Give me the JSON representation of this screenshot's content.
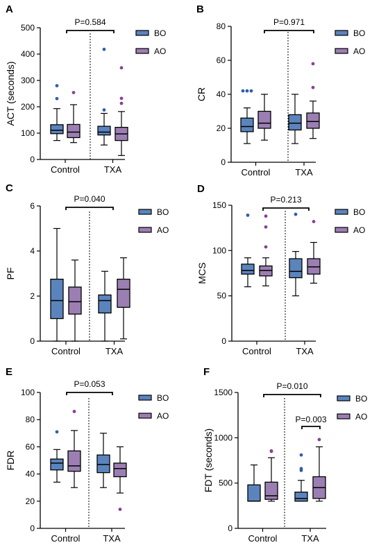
{
  "colors": {
    "bo": "#5b84bd",
    "ao": "#9b7fb2",
    "bo_outlier": "#2f5fa8",
    "ao_outlier": "#8a3f97"
  },
  "legend": {
    "bo_label": "BO",
    "ao_label": "AO"
  },
  "groups": [
    "Control",
    "TXA"
  ],
  "chart_data": [
    {
      "type": "boxplot",
      "panel": "A",
      "ylabel": "ACT (seconds)",
      "ylim": [
        0,
        500
      ],
      "yticks": [
        0,
        100,
        200,
        300,
        400,
        500
      ],
      "categories": [
        "Control",
        "TXA"
      ],
      "legend_position": "top-right",
      "series": [
        {
          "name": "BO",
          "boxes": [
            {
              "min": 72,
              "q1": 98,
              "median": 111,
              "q3": 132,
              "max": 193,
              "outliers": [
                231,
                280
              ]
            },
            {
              "min": 55,
              "q1": 93,
              "median": 104,
              "q3": 126,
              "max": 175,
              "outliers": [
                188,
                418
              ]
            }
          ]
        },
        {
          "name": "AO",
          "boxes": [
            {
              "min": 64,
              "q1": 83,
              "median": 104,
              "q3": 133,
              "max": 208,
              "outliers": [
                254
              ]
            },
            {
              "min": 15,
              "q1": 72,
              "median": 97,
              "q3": 122,
              "max": 182,
              "outliers": [
                213,
                232,
                348
              ]
            }
          ]
        }
      ],
      "comparisons": [
        {
          "label": "P=0.584",
          "between": "groups"
        }
      ]
    },
    {
      "type": "boxplot",
      "panel": "B",
      "ylabel": "CR",
      "ylim": [
        0,
        80
      ],
      "yticks": [
        0,
        20,
        40,
        60,
        80
      ],
      "categories": [
        "Control",
        "TXA"
      ],
      "legend_position": "top-right",
      "series": [
        {
          "name": "BO",
          "boxes": [
            {
              "min": 11,
              "q1": 18,
              "median": 21,
              "q3": 26,
              "max": 32,
              "outliers": [
                42,
                42,
                42
              ]
            },
            {
              "min": 11,
              "q1": 19,
              "median": 23,
              "q3": 28,
              "max": 40,
              "outliers": []
            }
          ]
        },
        {
          "name": "AO",
          "boxes": [
            {
              "min": 13,
              "q1": 20,
              "median": 23,
              "q3": 30,
              "max": 40,
              "outliers": []
            },
            {
              "min": 14,
              "q1": 20,
              "median": 24,
              "q3": 29,
              "max": 36,
              "outliers": [
                44,
                58
              ]
            }
          ]
        }
      ],
      "comparisons": [
        {
          "label": "P=0.971",
          "between": "groups"
        }
      ]
    },
    {
      "type": "boxplot",
      "panel": "C",
      "ylabel": "PF",
      "ylim": [
        0,
        6
      ],
      "yticks": [
        0,
        2,
        4,
        6
      ],
      "categories": [
        "Control",
        "TXA"
      ],
      "legend_position": "top-right",
      "series": [
        {
          "name": "BO",
          "boxes": [
            {
              "min": 0,
              "q1": 1.0,
              "median": 1.8,
              "q3": 2.75,
              "max": 5.0,
              "outliers": []
            },
            {
              "min": 0,
              "q1": 1.25,
              "median": 1.8,
              "q3": 2.05,
              "max": 3.1,
              "outliers": []
            }
          ]
        },
        {
          "name": "AO",
          "boxes": [
            {
              "min": 0,
              "q1": 1.2,
              "median": 1.75,
              "q3": 2.4,
              "max": 3.6,
              "outliers": []
            },
            {
              "min": 0.1,
              "q1": 1.5,
              "median": 2.3,
              "q3": 2.75,
              "max": 3.7,
              "outliers": []
            }
          ]
        }
      ],
      "comparisons": [
        {
          "label": "P=0.040",
          "between": "groups"
        }
      ]
    },
    {
      "type": "boxplot",
      "panel": "D",
      "ylabel": "MCS",
      "ylim": [
        0,
        150
      ],
      "yticks": [
        0,
        50,
        100,
        150
      ],
      "categories": [
        "Control",
        "TXA"
      ],
      "legend_position": "top-right",
      "series": [
        {
          "name": "BO",
          "boxes": [
            {
              "min": 60,
              "q1": 74,
              "median": 78,
              "q3": 85,
              "max": 92,
              "outliers": [
                139
              ]
            },
            {
              "min": 50,
              "q1": 70,
              "median": 77,
              "q3": 91,
              "max": 99,
              "outliers": [
                140
              ]
            }
          ]
        },
        {
          "name": "AO",
          "boxes": [
            {
              "min": 61,
              "q1": 72,
              "median": 78,
              "q3": 83,
              "max": 92,
              "outliers": [
                104,
                126,
                138
              ]
            },
            {
              "min": 64,
              "q1": 74,
              "median": 82,
              "q3": 91,
              "max": 109,
              "outliers": [
                132
              ]
            }
          ]
        }
      ],
      "comparisons": [
        {
          "label": "P=0.213",
          "between": "groups"
        }
      ]
    },
    {
      "type": "boxplot",
      "panel": "E",
      "ylabel": "FDR",
      "ylim": [
        0,
        100
      ],
      "yticks": [
        0,
        20,
        40,
        60,
        80,
        100
      ],
      "categories": [
        "Control",
        "TXA"
      ],
      "legend_position": "top-right",
      "series": [
        {
          "name": "BO",
          "boxes": [
            {
              "min": 34,
              "q1": 43,
              "median": 48,
              "q3": 51,
              "max": 58,
              "outliers": [
                71
              ]
            },
            {
              "min": 30,
              "q1": 41,
              "median": 47,
              "q3": 54,
              "max": 70,
              "outliers": []
            }
          ]
        },
        {
          "name": "AO",
          "boxes": [
            {
              "min": 30,
              "q1": 42,
              "median": 46,
              "q3": 57,
              "max": 72,
              "outliers": [
                86
              ]
            },
            {
              "min": 26,
              "q1": 38,
              "median": 44,
              "q3": 48,
              "max": 60,
              "outliers": [
                14
              ]
            }
          ]
        }
      ],
      "comparisons": [
        {
          "label": "P=0.053",
          "between": "groups"
        }
      ]
    },
    {
      "type": "boxplot",
      "panel": "F",
      "ylabel": "FDT (seconds)",
      "ylim": [
        0,
        1500
      ],
      "yticks": [
        0,
        500,
        1000,
        1500
      ],
      "categories": [
        "Control",
        "TXA"
      ],
      "legend_position": "top-right",
      "series": [
        {
          "name": "BO",
          "boxes": [
            {
              "min": 300,
              "q1": 300,
              "median": 300,
              "q3": 480,
              "max": 700,
              "outliers": []
            },
            {
              "min": 300,
              "q1": 300,
              "median": 330,
              "q3": 400,
              "max": 530,
              "outliers": [
                640,
                660,
                810
              ]
            }
          ]
        },
        {
          "name": "AO",
          "boxes": [
            {
              "min": 300,
              "q1": 320,
              "median": 360,
              "q3": 510,
              "max": 780,
              "outliers": [
                850,
                855
              ]
            },
            {
              "min": 300,
              "q1": 330,
              "median": 450,
              "q3": 570,
              "max": 900,
              "outliers": [
                980
              ]
            }
          ]
        }
      ],
      "comparisons": [
        {
          "label": "P=0.010",
          "between": "groups"
        },
        {
          "label": "P=0.003",
          "between": "txa"
        }
      ]
    }
  ]
}
